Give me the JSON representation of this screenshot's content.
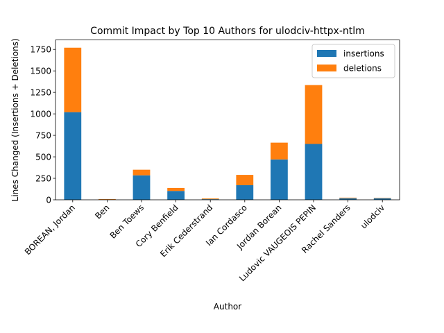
{
  "chart_data": {
    "type": "bar",
    "stacked": true,
    "title": "Commit Impact by Top 10 Authors for ulodciv-httpx-ntlm",
    "xlabel": "Author",
    "ylabel": "Lines Changed (Insertions + Deletions)",
    "ylim": [
      0,
      1860
    ],
    "yticks": [
      0,
      250,
      500,
      750,
      1000,
      1250,
      1500,
      1750
    ],
    "grid": false,
    "legend_position": "top-right",
    "categories": [
      "BOREAN, Jordan",
      "Ben",
      "Ben Toews",
      "Cory Benfield",
      "Erik Cederstrand",
      "Ian Cordasco",
      "Jordan Borean",
      "Ludovic VAUGEOIS PEPIN",
      "Rachel Sanders",
      "ulodciv"
    ],
    "series": [
      {
        "name": "insertions",
        "color": "#1f77b4",
        "values": [
          1020,
          4,
          285,
          103,
          7,
          170,
          470,
          650,
          18,
          18
        ]
      },
      {
        "name": "deletions",
        "color": "#ff7f0e",
        "values": [
          750,
          4,
          65,
          35,
          8,
          120,
          195,
          685,
          7,
          5
        ]
      }
    ]
  }
}
